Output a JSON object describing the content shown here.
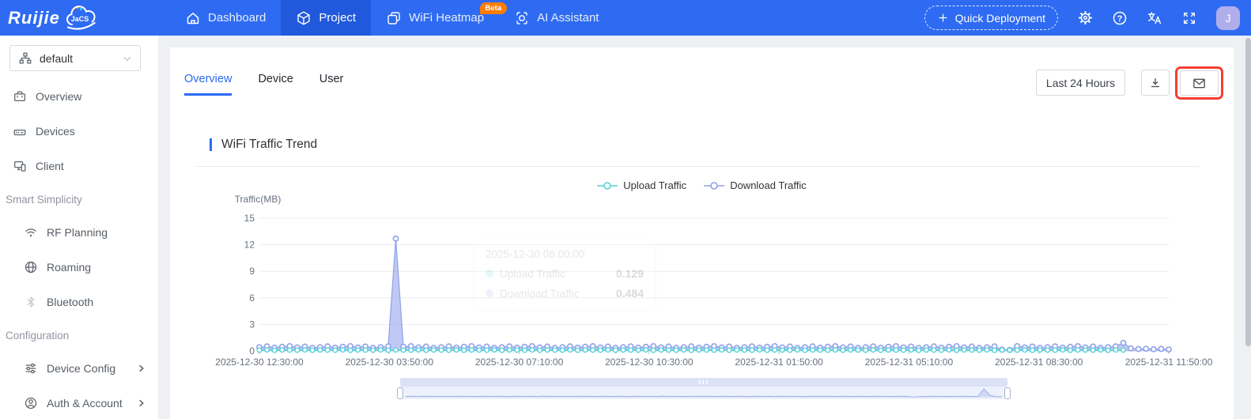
{
  "navbar": {
    "logo_text": "Ruijie",
    "logo_cloud_text": "JaCS",
    "menu": [
      "Dashboard",
      "Project",
      "WiFi Heatmap",
      "AI Assistant"
    ],
    "beta_badge": "Beta",
    "quick_deployment": "Quick Deployment",
    "avatar_initial": "J"
  },
  "sidebar": {
    "selector_value": "default",
    "section1_items": [
      "Overview",
      "Devices",
      "Client"
    ],
    "section2_label": "Smart Simplicity",
    "section2_items": [
      "RF Planning",
      "Roaming",
      "Bluetooth"
    ],
    "section3_label": "Configuration",
    "section3_items": [
      "Device Config",
      "Auth & Account"
    ]
  },
  "tabs": [
    "Overview",
    "Device",
    "User"
  ],
  "toolbar": {
    "time_range": "Last 24 Hours"
  },
  "section_title": "WiFi Traffic Trend",
  "chart_data": {
    "type": "line",
    "title": "WiFi Traffic Trend",
    "ylabel": "Traffic(MB)",
    "ylim": [
      0,
      15
    ],
    "y_ticks": [
      0,
      3,
      6,
      9,
      12,
      15
    ],
    "grid": true,
    "legend_position": "top-center",
    "x_tick_labels": [
      "2025-12-30 12:30:00",
      "2025-12-30 03:50:00",
      "2025-12-30 07:10:00",
      "2025-12-30 10:30:00",
      "2025-12-31 01:50:00",
      "2025-12-31 05:10:00",
      "2025-12-31 08:30:00",
      "2025-12-31 11:50:00"
    ],
    "series": [
      {
        "name": "Upload Traffic",
        "color": "#55d2d6",
        "values": [
          0.1,
          0.13,
          0.09,
          0.12,
          0.11,
          0.1,
          0.13,
          0.09,
          0.12,
          0.11,
          0.1,
          0.13,
          0.09,
          0.12,
          0.11,
          0.1,
          0.13,
          0.09,
          0.12,
          0.11,
          0.1,
          0.13,
          0.09,
          0.12,
          0.11,
          0.1,
          0.13,
          0.09,
          0.12,
          0.11,
          0.1,
          0.13,
          0.09,
          0.12,
          0.11,
          0.1,
          0.13,
          0.09,
          0.12,
          0.11,
          0.1,
          0.13,
          0.09,
          0.12,
          0.11,
          0.1,
          0.13,
          0.09,
          0.12,
          0.11,
          0.1,
          0.13,
          0.09,
          0.12,
          0.11,
          0.1,
          0.13,
          0.09,
          0.12,
          0.11,
          0.1,
          0.13,
          0.09,
          0.12,
          0.11,
          0.1,
          0.13,
          0.09,
          0.12,
          0.11,
          0.1,
          0.13,
          0.09,
          0.12,
          0.11,
          0.1,
          0.13,
          0.09,
          0.12,
          0.11,
          0.1,
          0.13,
          0.09,
          0.12,
          0.11,
          0.1,
          0.13,
          0.09,
          0.12,
          0.11,
          0.1,
          0.13,
          0.09,
          0.12,
          0.11,
          0.1,
          0.13,
          0.09,
          0.12,
          0.11,
          0.1,
          0.13,
          0.09,
          0.12,
          0.11,
          0.1,
          0.13,
          0.09,
          0.12,
          0.11,
          0.1,
          0.13,
          0.09,
          0.12,
          0.11,
          null,
          null,
          null,
          null,
          null,
          null
        ]
      },
      {
        "name": "Download Traffic",
        "color": "#8fa0e9",
        "values": [
          0.42,
          0.52,
          0.38,
          0.48,
          0.55,
          0.4,
          0.5,
          0.35,
          0.42,
          0.52,
          0.38,
          0.48,
          0.55,
          0.4,
          0.5,
          0.35,
          0.42,
          0.52,
          12.7,
          0.48,
          0.55,
          0.4,
          0.5,
          0.35,
          0.42,
          0.52,
          0.38,
          0.48,
          0.55,
          0.4,
          0.5,
          0.35,
          0.42,
          0.52,
          0.38,
          0.48,
          0.55,
          0.4,
          0.5,
          0.35,
          0.42,
          0.52,
          0.38,
          0.48,
          0.55,
          0.4,
          0.5,
          0.35,
          0.42,
          0.52,
          0.38,
          0.48,
          0.55,
          0.4,
          0.5,
          0.35,
          0.42,
          0.52,
          0.38,
          0.48,
          0.55,
          0.4,
          0.5,
          0.35,
          0.42,
          0.52,
          0.38,
          0.48,
          0.55,
          0.4,
          0.5,
          0.35,
          0.42,
          0.52,
          0.38,
          0.48,
          0.55,
          0.4,
          0.5,
          0.35,
          0.42,
          0.52,
          0.38,
          0.48,
          0.55,
          0.4,
          0.5,
          0.35,
          0.42,
          0.52,
          0.38,
          0.48,
          0.55,
          0.4,
          0.5,
          0.35,
          0.42,
          0.52,
          0.15,
          0.12,
          0.55,
          0.4,
          0.5,
          0.35,
          0.42,
          0.52,
          0.38,
          0.48,
          0.55,
          0.4,
          0.5,
          0.35,
          0.42,
          0.52,
          0.92,
          0.3,
          0.22,
          0.26,
          0.2,
          0.24,
          0.18
        ]
      }
    ],
    "tooltip": {
      "time": "2025-12-30 06:00:00",
      "rows": [
        {
          "label": "Upload Traffic",
          "value": "0.129"
        },
        {
          "label": "Download Traffic",
          "value": "0.484"
        }
      ]
    },
    "slider_profile": [
      0.08,
      0.1,
      0.07,
      0.11,
      0.09,
      0.08,
      0.1,
      0.07,
      0.09,
      0.11,
      0.08,
      0.1,
      0.07,
      0.11,
      0.09,
      0.08,
      0.1,
      0.07,
      0.09,
      0.11,
      0.08,
      0.1,
      0.07,
      0.11,
      0.09,
      0.08,
      0.1,
      0.07,
      0.09,
      0.11,
      0.08,
      0.1,
      0.07,
      0.11,
      0.09,
      0.08,
      0.1,
      0.07,
      0.09,
      0.11,
      0.08,
      0.1,
      0.07,
      0.11,
      0.09,
      0.08,
      0.1,
      0.07,
      0.09,
      0.11,
      0.08,
      0.1,
      0.07,
      0.11,
      0.09,
      0.08,
      0.1,
      0.07,
      0.09,
      0.11,
      0.08,
      0.1,
      0.07,
      0.11,
      0.09,
      0.08,
      0.1,
      0.07,
      0.09,
      0.11,
      0.08,
      0.1,
      0.07,
      0.11,
      0.09,
      0.08,
      0.1,
      0.07,
      0.09,
      0.11,
      0.08,
      0.1,
      0.07,
      0.11,
      0.09,
      0.02,
      0.06,
      0.08,
      0.09,
      0.1,
      0.08,
      0.09,
      0.08,
      0.1,
      0.09,
      0.08,
      0.09,
      0.85,
      0.2,
      0.05,
      0.06
    ]
  }
}
